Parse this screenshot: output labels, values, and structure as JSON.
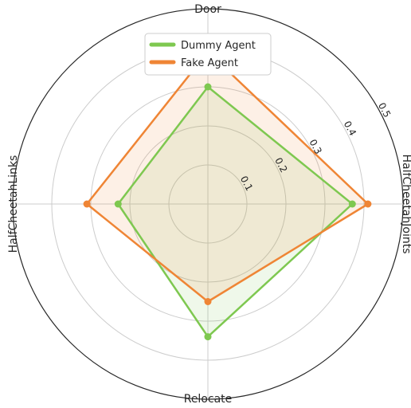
{
  "chart_data": {
    "type": "radar",
    "axes": [
      "Door",
      "HalfCheetahJoints",
      "Relocate",
      "HalfCheetahLinks"
    ],
    "rlim": [
      0,
      0.5
    ],
    "rticks": [
      "0.1",
      "0.2",
      "0.3",
      "0.4",
      "0.5"
    ],
    "series": [
      {
        "name": "Dummy Agent",
        "color": "#7ec850",
        "values": [
          0.3,
          0.37,
          0.34,
          0.23
        ]
      },
      {
        "name": "Fake Agent",
        "color": "#ef8535",
        "values": [
          0.39,
          0.41,
          0.25,
          0.31
        ]
      }
    ],
    "legend_position": "top-center",
    "grid": true
  }
}
